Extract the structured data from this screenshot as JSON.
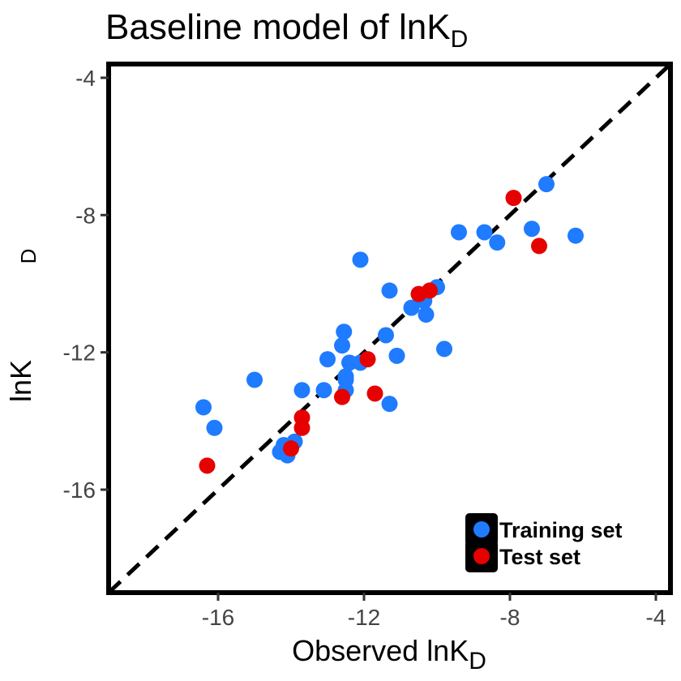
{
  "chart_data": {
    "type": "scatter",
    "title": {
      "main": "Baseline model of lnK",
      "sub": "D"
    },
    "xlabel": {
      "main": "Observed lnK",
      "sub": "D"
    },
    "ylabel": {
      "main": "lnK",
      "sub": "D"
    },
    "xlim": [
      -19,
      -3.6
    ],
    "ylim": [
      -19,
      -3.6
    ],
    "xticks": [
      -16,
      -12,
      -8,
      -4
    ],
    "yticks": [
      -4,
      -8,
      -12,
      -16
    ],
    "xtick_labels": [
      "-16",
      "-12",
      "-8",
      "-4"
    ],
    "ytick_labels": [
      "-4",
      "-8",
      "-12",
      "-16"
    ],
    "grid": false,
    "reference_line": {
      "style": "dashed",
      "from": [
        -19,
        -19
      ],
      "to": [
        -3.6,
        -3.6
      ],
      "color": "#000000"
    },
    "legend": {
      "position": "bottom-right"
    },
    "series": [
      {
        "name": "Training set",
        "color": "#1f7bff",
        "points": [
          [
            -16.4,
            -13.6
          ],
          [
            -16.1,
            -14.2
          ],
          [
            -15.0,
            -12.8
          ],
          [
            -14.3,
            -14.9
          ],
          [
            -14.2,
            -14.7
          ],
          [
            -14.1,
            -15.0
          ],
          [
            -14.0,
            -14.7
          ],
          [
            -13.9,
            -14.6
          ],
          [
            -13.7,
            -13.1
          ],
          [
            -13.1,
            -13.1
          ],
          [
            -13.0,
            -12.2
          ],
          [
            -12.6,
            -11.8
          ],
          [
            -12.55,
            -11.4
          ],
          [
            -12.5,
            -12.7
          ],
          [
            -12.5,
            -12.8
          ],
          [
            -12.5,
            -13.1
          ],
          [
            -12.4,
            -12.3
          ],
          [
            -12.1,
            -12.3
          ],
          [
            -12.1,
            -9.3
          ],
          [
            -11.4,
            -11.5
          ],
          [
            -11.3,
            -10.2
          ],
          [
            -11.3,
            -13.5
          ],
          [
            -11.1,
            -12.1
          ],
          [
            -10.7,
            -10.7
          ],
          [
            -10.35,
            -10.5
          ],
          [
            -10.3,
            -10.9
          ],
          [
            -10.0,
            -10.1
          ],
          [
            -9.8,
            -11.9
          ],
          [
            -9.4,
            -8.5
          ],
          [
            -8.7,
            -8.5
          ],
          [
            -8.35,
            -8.8
          ],
          [
            -7.4,
            -8.4
          ],
          [
            -7.0,
            -7.1
          ],
          [
            -6.2,
            -8.6
          ]
        ]
      },
      {
        "name": "Test set",
        "color": "#e60000",
        "points": [
          [
            -16.3,
            -15.3
          ],
          [
            -14.0,
            -14.8
          ],
          [
            -13.7,
            -14.2
          ],
          [
            -13.7,
            -13.9
          ],
          [
            -12.6,
            -13.3
          ],
          [
            -11.9,
            -12.2
          ],
          [
            -11.7,
            -13.2
          ],
          [
            -10.5,
            -10.3
          ],
          [
            -10.2,
            -10.2
          ],
          [
            -7.9,
            -7.5
          ],
          [
            -7.2,
            -8.9
          ]
        ]
      }
    ]
  }
}
